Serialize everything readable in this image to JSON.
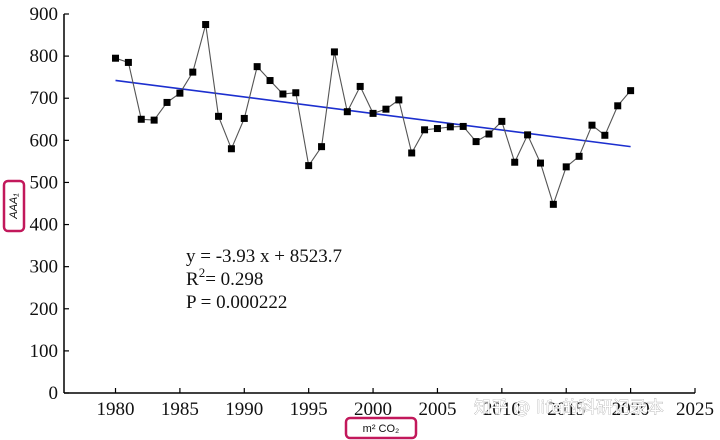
{
  "chart_data": {
    "type": "scatter",
    "xlabel": "m² CO₂",
    "ylabel": "AAA₁",
    "xlim": [
      1976,
      2025
    ],
    "ylim": [
      0,
      900
    ],
    "xticks": [
      1980,
      1985,
      1990,
      1995,
      2000,
      2005,
      2010,
      2015,
      2020,
      2025
    ],
    "yticks": [
      0,
      100,
      200,
      300,
      400,
      500,
      600,
      700,
      800,
      900
    ],
    "grid": false,
    "series": [
      {
        "x": [
          1980,
          1981,
          1982,
          1983,
          1984,
          1985,
          1986,
          1987,
          1988,
          1989,
          1990,
          1991,
          1992,
          1993,
          1994,
          1995,
          1996,
          1997,
          1998,
          1999,
          2000,
          2001,
          2002,
          2003,
          2004,
          2005,
          2006,
          2007,
          2008,
          2009,
          2010,
          2011,
          2012,
          2013,
          2014,
          2015,
          2016,
          2017,
          2018,
          2019,
          2020
        ],
        "y": [
          795,
          785,
          650,
          648,
          690,
          712,
          762,
          875,
          657,
          580,
          652,
          775,
          742,
          710,
          713,
          540,
          585,
          810,
          668,
          728,
          664,
          674,
          696,
          570,
          625,
          628,
          632,
          633,
          597,
          615,
          645,
          548,
          613,
          546,
          448,
          537,
          562,
          636,
          612,
          682,
          718
        ],
        "color": "#555555",
        "marker": "square"
      }
    ],
    "trendline": {
      "slope": -3.93,
      "intercept": 8523.7,
      "x_range": [
        1980,
        2020
      ],
      "color": "#1c2fcf"
    },
    "annotations": {
      "equation": "y = -3.93 x + 8523.7",
      "r2_prefix": "R",
      "r2_sup": "2",
      "r2_value": "= 0.298",
      "p_value": "P = 0.000222"
    },
    "highlight_color": "#c2185b"
  },
  "watermark": "知乎 @ life的科研记录本"
}
